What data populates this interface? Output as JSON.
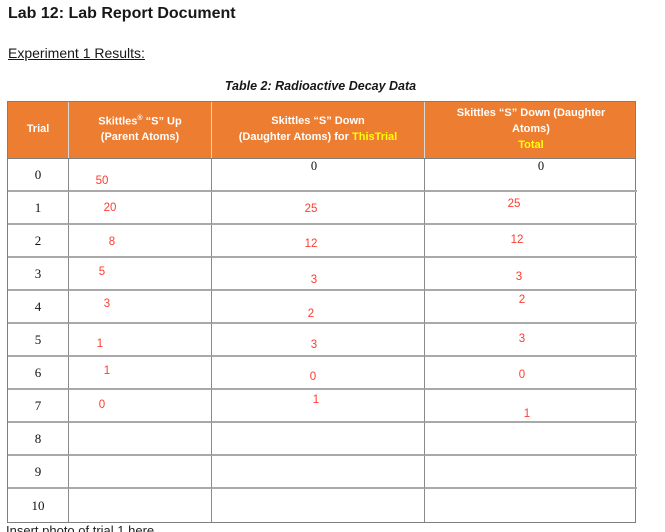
{
  "page": {
    "title": "Lab 12: Lab Report Document",
    "section_heading": "Experiment 1 Results:",
    "clipped_bottom_text": "Insert photo of trial 1 here"
  },
  "colors": {
    "header_bg": "#ED7D31",
    "header_text": "#FFFFFF",
    "highlight_yellow": "#FFFF00",
    "annotation_red": "#FF3B30",
    "typed_text": "#111111"
  },
  "table": {
    "caption": "Table 2: Radioactive Decay Data",
    "header": {
      "col_trial": "Trial",
      "col_up": {
        "brand": "Skittles",
        "sup": "®",
        "rest": " “S” Up",
        "line2": "(Parent Atoms)"
      },
      "col_down_trial": {
        "line1": "Skittles “S” Down",
        "line2_prefix": "(Daughter Atoms) for ",
        "line2_highlight": "ThisTrial"
      },
      "col_down_total": {
        "line1": "Skittles “S” Down (Daughter",
        "line2": "Atoms)",
        "line3_highlight": "Total"
      }
    },
    "rows": [
      {
        "trial": "0",
        "up": "50",
        "down_trial": "0",
        "down_total": "0",
        "typed": [
          "down_trial",
          "down_total"
        ]
      },
      {
        "trial": "1",
        "up": "20",
        "down_trial": "25",
        "down_total": "25"
      },
      {
        "trial": "2",
        "up": "8",
        "down_trial": "12",
        "down_total": "12"
      },
      {
        "trial": "3",
        "up": "5",
        "down_trial": "3",
        "down_total": "3"
      },
      {
        "trial": "4",
        "up": "3",
        "down_trial": "2",
        "down_total": "2"
      },
      {
        "trial": "5",
        "up": "1",
        "down_trial": "3",
        "down_total": "3"
      },
      {
        "trial": "6",
        "up": "1",
        "down_trial": "0",
        "down_total": "0"
      },
      {
        "trial": "7",
        "up": "0",
        "down_trial": "1",
        "down_total": "1"
      },
      {
        "trial": "8",
        "up": "",
        "down_trial": "",
        "down_total": ""
      },
      {
        "trial": "9",
        "up": "",
        "down_trial": "",
        "down_total": ""
      },
      {
        "trial": "10",
        "up": "",
        "down_trial": "",
        "down_total": ""
      }
    ]
  }
}
